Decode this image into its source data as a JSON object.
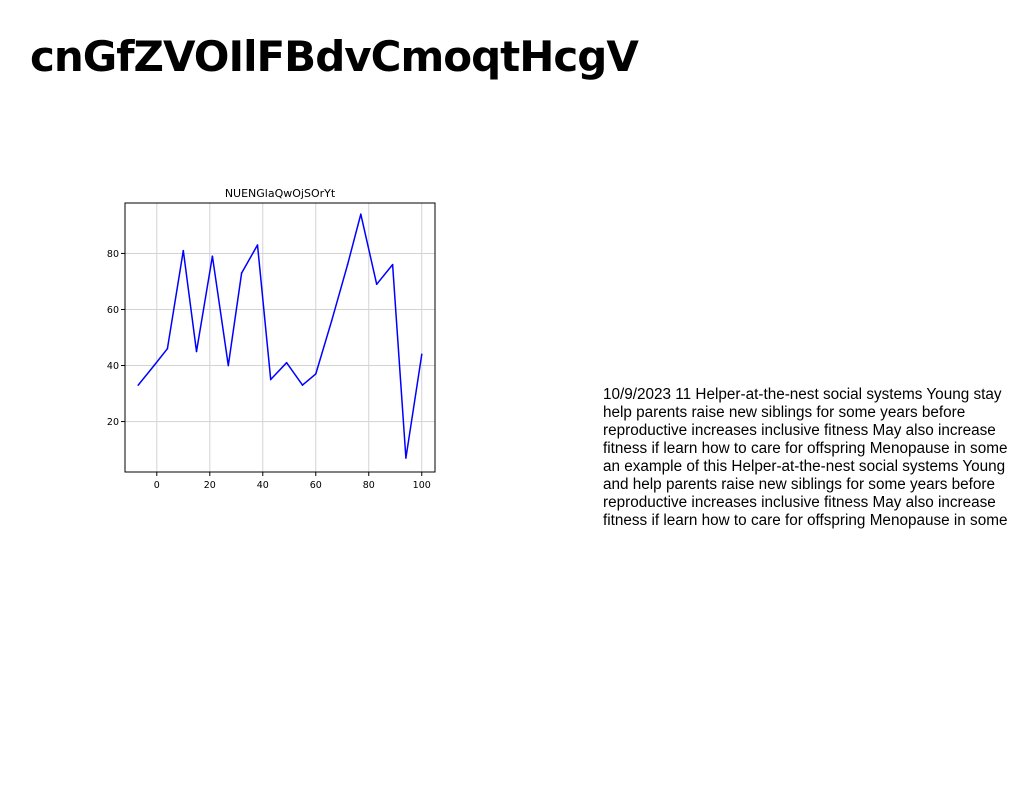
{
  "page": {
    "title": "cnGfZVOIlFBdvCmoqtHcgV",
    "body_text": "10/9/2023 11 Helper-at-the-nest social systems Young stay help parents raise new siblings for some years before reproductive increases inclusive fitness May also increase fitness if learn how to care for offspring Menopause in some an example of this Helper-at-the-nest social systems Young and help parents raise new siblings for some years before reproductive increases inclusive fitness May also increase fitness if learn how to care for offspring Menopause in some"
  },
  "chart_data": {
    "type": "line",
    "title": "NUENGlaQwOjSOrYt",
    "xlabel": "",
    "ylabel": "",
    "xlim": [
      -12,
      105
    ],
    "ylim": [
      2,
      98
    ],
    "xticks": [
      0,
      20,
      40,
      60,
      80,
      100
    ],
    "yticks": [
      20,
      40,
      60,
      80
    ],
    "grid": true,
    "legend": "none",
    "series": [
      {
        "color": "#0000ff",
        "x": [
          -7,
          -1,
          4,
          10,
          15,
          21,
          27,
          32,
          38,
          43,
          49,
          55,
          60,
          66,
          72,
          77,
          83,
          89,
          94,
          100
        ],
        "y": [
          33,
          40,
          46,
          81,
          45,
          79,
          40,
          73,
          83,
          35,
          41,
          33,
          37,
          56,
          76,
          94,
          69,
          76,
          7,
          44
        ]
      }
    ]
  }
}
